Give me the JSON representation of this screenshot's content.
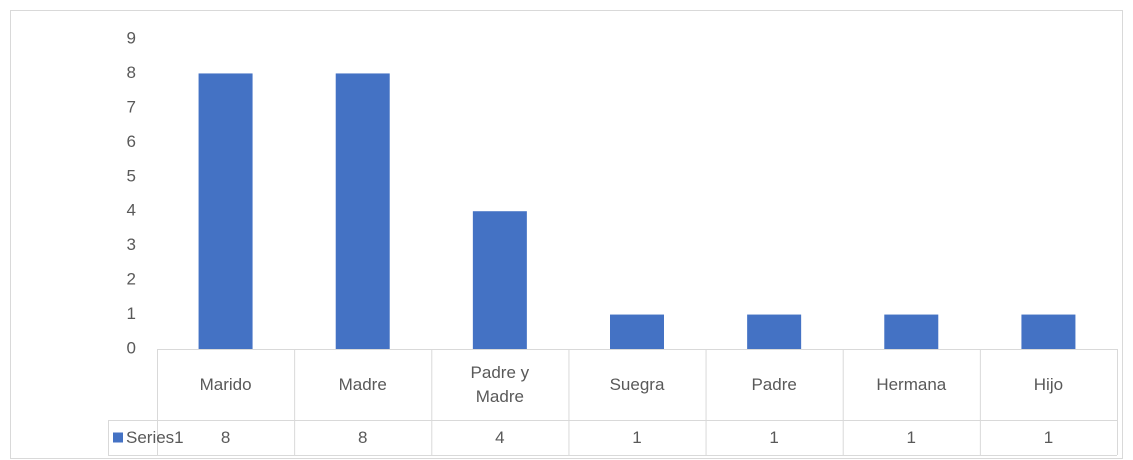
{
  "chart_data": {
    "type": "bar",
    "categories": [
      "Marido",
      "Madre",
      "Padre y Madre",
      "Suegra",
      "Padre",
      "Hermana",
      "Hijo"
    ],
    "series": [
      {
        "name": "Series1",
        "color": "#4472c4",
        "values": [
          8,
          8,
          4,
          1,
          1,
          1,
          1
        ]
      }
    ],
    "ylim": [
      0,
      9
    ],
    "yticks": [
      0,
      1,
      2,
      3,
      4,
      5,
      6,
      7,
      8,
      9
    ],
    "grid": false
  }
}
